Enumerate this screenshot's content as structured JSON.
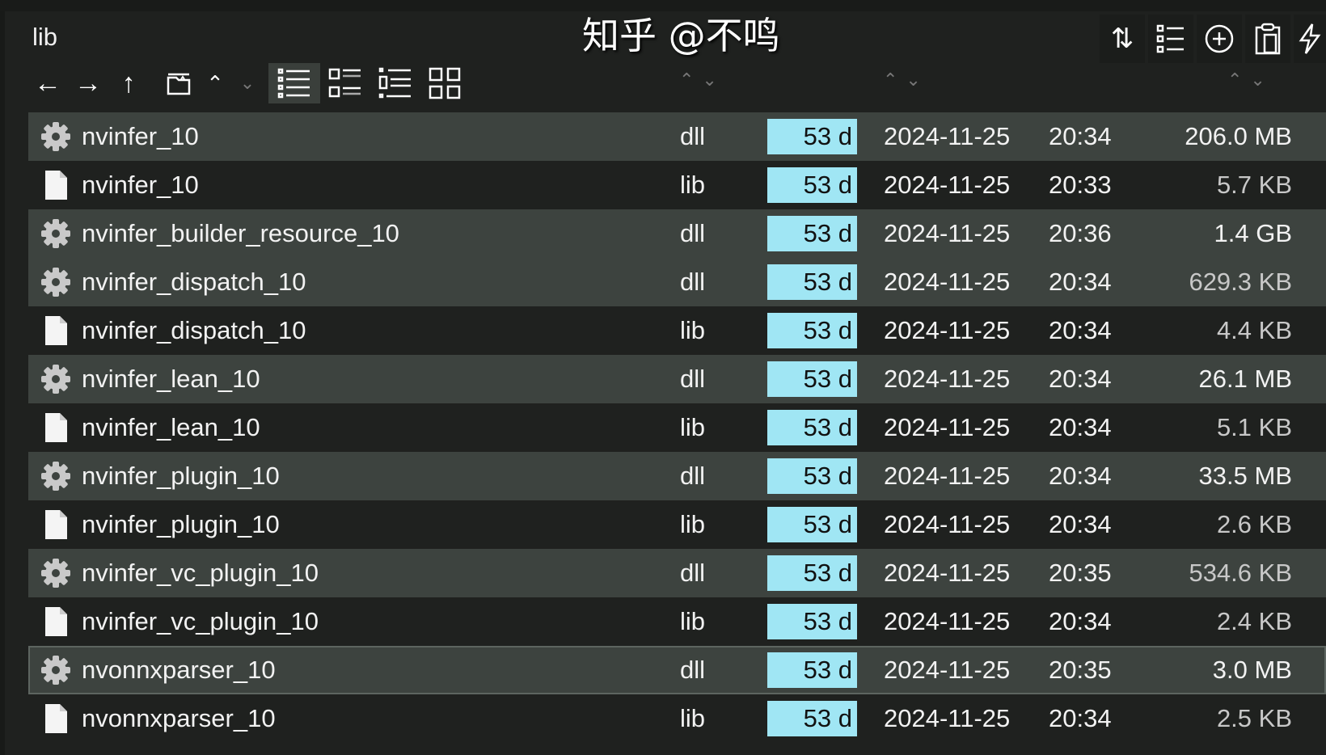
{
  "title": "lib",
  "watermark": "知乎 @不鸣",
  "toolbar": {
    "left": [
      "arrow-left-icon",
      "arrow-right-icon",
      "arrow-up-icon",
      "new-folder-icon",
      "chevron-up-icon",
      "chevron-down-icon",
      "list-view-icon",
      "details-view-icon",
      "tree-view-icon",
      "grid-view-icon"
    ],
    "selected_view": "list-view-icon",
    "right": [
      "sort-icon",
      "checklist-icon",
      "add-circle-icon",
      "clipboard-icon",
      "lightning-icon"
    ]
  },
  "files": [
    {
      "name": "nvinfer_10",
      "ext": "dll",
      "age": "53 d",
      "date": "2024-11-25",
      "time": "20:34",
      "size": "206.0 MB"
    },
    {
      "name": "nvinfer_10",
      "ext": "lib",
      "age": "53 d",
      "date": "2024-11-25",
      "time": "20:33",
      "size": "5.7 KB"
    },
    {
      "name": "nvinfer_builder_resource_10",
      "ext": "dll",
      "age": "53 d",
      "date": "2024-11-25",
      "time": "20:36",
      "size": "1.4 GB"
    },
    {
      "name": "nvinfer_dispatch_10",
      "ext": "dll",
      "age": "53 d",
      "date": "2024-11-25",
      "time": "20:34",
      "size": "629.3 KB"
    },
    {
      "name": "nvinfer_dispatch_10",
      "ext": "lib",
      "age": "53 d",
      "date": "2024-11-25",
      "time": "20:34",
      "size": "4.4 KB"
    },
    {
      "name": "nvinfer_lean_10",
      "ext": "dll",
      "age": "53 d",
      "date": "2024-11-25",
      "time": "20:34",
      "size": "26.1 MB"
    },
    {
      "name": "nvinfer_lean_10",
      "ext": "lib",
      "age": "53 d",
      "date": "2024-11-25",
      "time": "20:34",
      "size": "5.1 KB"
    },
    {
      "name": "nvinfer_plugin_10",
      "ext": "dll",
      "age": "53 d",
      "date": "2024-11-25",
      "time": "20:34",
      "size": "33.5 MB"
    },
    {
      "name": "nvinfer_plugin_10",
      "ext": "lib",
      "age": "53 d",
      "date": "2024-11-25",
      "time": "20:34",
      "size": "2.6 KB"
    },
    {
      "name": "nvinfer_vc_plugin_10",
      "ext": "dll",
      "age": "53 d",
      "date": "2024-11-25",
      "time": "20:35",
      "size": "534.6 KB"
    },
    {
      "name": "nvinfer_vc_plugin_10",
      "ext": "lib",
      "age": "53 d",
      "date": "2024-11-25",
      "time": "20:34",
      "size": "2.4 KB"
    },
    {
      "name": "nvonnxparser_10",
      "ext": "dll",
      "age": "53 d",
      "date": "2024-11-25",
      "time": "20:35",
      "size": "3.0 MB"
    },
    {
      "name": "nvonnxparser_10",
      "ext": "lib",
      "age": "53 d",
      "date": "2024-11-25",
      "time": "20:34",
      "size": "2.5 KB"
    }
  ],
  "focused_index": 11,
  "colors": {
    "age_highlight": "#a0e6f4",
    "dll_row": "#3d433f",
    "background": "#1f211f"
  }
}
